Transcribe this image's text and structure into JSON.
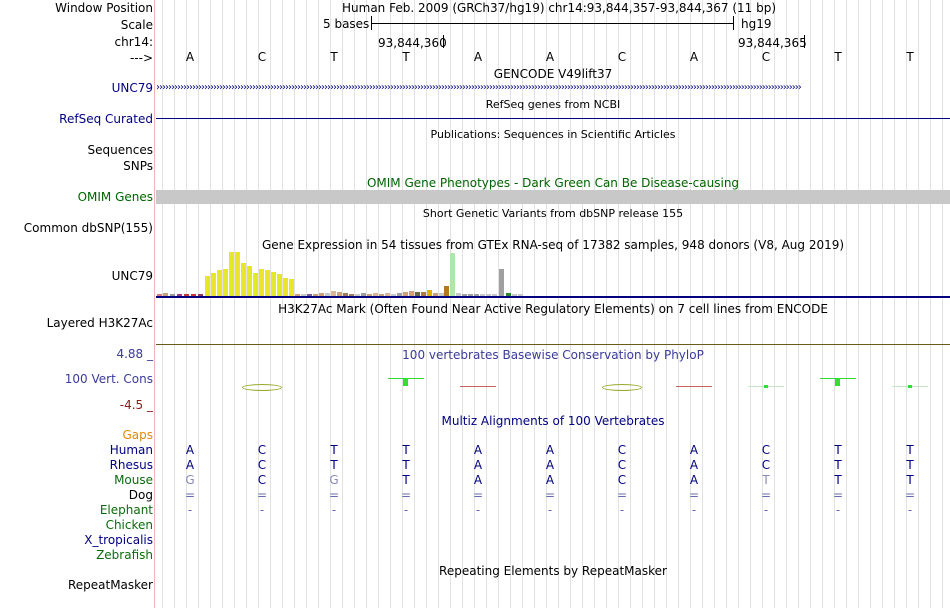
{
  "labels": {
    "window_position": "Window Position",
    "scale": "Scale",
    "chrom": "chr14:",
    "strand": "--->",
    "unc79_gene": "UNC79",
    "refseq": "RefSeq Curated",
    "sequences": "Sequences",
    "snps": "SNPs",
    "omim": "OMIM Genes",
    "dbsnp": "Common dbSNP(155)",
    "gtex": "UNC79",
    "h3k27ac": "Layered H3K27Ac",
    "cons_max": "4.88 _",
    "cons_label": "100 Vert. Cons",
    "cons_min": "-4.5 _",
    "gaps": "Gaps",
    "species": [
      "Human",
      "Rhesus",
      "Mouse",
      "Dog",
      "Elephant",
      "Chicken",
      "X_tropicalis",
      "Zebrafish"
    ],
    "repeatmasker": "RepeatMasker"
  },
  "header": {
    "position_text": "Human Feb. 2009 (GRCh37/hg19)   chr14:93,844,357-93,844,367 (11 bp)",
    "scale_text": "5 bases",
    "assembly": "hg19",
    "coord1": "93,844,360",
    "coord2": "93,844,365"
  },
  "bases": [
    "A",
    "C",
    "T",
    "T",
    "A",
    "A",
    "C",
    "A",
    "C",
    "T",
    "T"
  ],
  "track_titles": {
    "gencode": "GENCODE V49lift37",
    "refseq": "RefSeq genes from NCBI",
    "publications": "Publications: Sequences in Scientific Articles",
    "omim": "OMIM Gene Phenotypes - Dark Green Can Be Disease-causing",
    "dbsnp": "Short Genetic Variants from dbSNP release 155",
    "gtex": "Gene Expression in 54 tissues from GTEx RNA-seq of 17382 samples, 948 donors (V8, Aug 2019)",
    "h3k27ac": "H3K27Ac Mark (Often Found Near Active Regulatory Elements) on 7 cell lines from ENCODE",
    "phylop": "100 vertebrates Basewise Conservation by PhyloP",
    "multiz": "Multiz Alignments of 100 Vertebrates",
    "repeatmasker": "Repeating Elements by RepeatMasker"
  },
  "alignment": {
    "Human": [
      "A",
      "C",
      "T",
      "T",
      "A",
      "A",
      "C",
      "A",
      "C",
      "T",
      "T"
    ],
    "Rhesus": [
      "A",
      "C",
      "T",
      "T",
      "A",
      "A",
      "C",
      "A",
      "C",
      "T",
      "T"
    ],
    "Mouse": [
      "G",
      "C",
      "G",
      "T",
      "A",
      "A",
      "C",
      "A",
      "T",
      "T",
      "T"
    ],
    "Dog": [
      "=",
      "=",
      "=",
      "=",
      "=",
      "=",
      "=",
      "=",
      "=",
      "=",
      "="
    ],
    "Elephant": [
      "-",
      "-",
      "-",
      "-",
      "-",
      "-",
      "-",
      "-",
      "-",
      "-",
      "-"
    ]
  },
  "colors": {
    "dark_blue": "#000080",
    "omim_green": "#006400",
    "gaps_orange": "#e08a00",
    "species_green": "#0b6b0b",
    "cons_blue": "#3a3a9a",
    "gtex_yellow": "#e6e62a",
    "track_grey": "#c8c8c8"
  }
}
